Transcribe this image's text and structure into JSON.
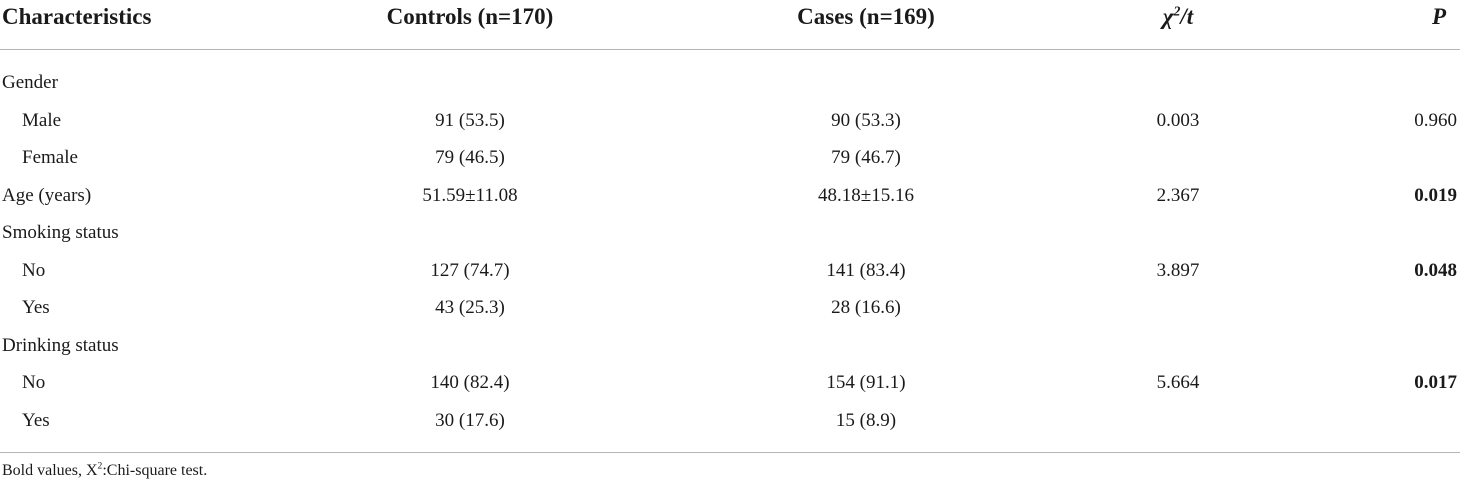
{
  "header": {
    "characteristics": "Characteristics",
    "controls": "Controls (n=170)",
    "cases": "Cases (n=169)",
    "stat_base": "χ",
    "stat_sup": "2",
    "stat_tail": "/t",
    "p": "P"
  },
  "rows": [
    {
      "label": "Gender",
      "controls": "",
      "cases": "",
      "stat": "",
      "p": "",
      "p_bold": false,
      "indent": false
    },
    {
      "label": "Male",
      "controls": "91 (53.5)",
      "cases": "90 (53.3)",
      "stat": "0.003",
      "p": "0.960",
      "p_bold": false,
      "indent": true
    },
    {
      "label": "Female",
      "controls": "79 (46.5)",
      "cases": "79 (46.7)",
      "stat": "",
      "p": "",
      "p_bold": false,
      "indent": true
    },
    {
      "label": "Age (years)",
      "controls": "51.59±11.08",
      "cases": "48.18±15.16",
      "stat": "2.367",
      "p": "0.019",
      "p_bold": true,
      "indent": false
    },
    {
      "label": "Smoking status",
      "controls": "",
      "cases": "",
      "stat": "",
      "p": "",
      "p_bold": false,
      "indent": false
    },
    {
      "label": "No",
      "controls": "127 (74.7)",
      "cases": "141 (83.4)",
      "stat": "3.897",
      "p": "0.048",
      "p_bold": true,
      "indent": true
    },
    {
      "label": "Yes",
      "controls": "43 (25.3)",
      "cases": "28 (16.6)",
      "stat": "",
      "p": "",
      "p_bold": false,
      "indent": true
    },
    {
      "label": "Drinking status",
      "controls": "",
      "cases": "",
      "stat": "",
      "p": "",
      "p_bold": false,
      "indent": false
    },
    {
      "label": "No",
      "controls": "140 (82.4)",
      "cases": "154 (91.1)",
      "stat": "5.664",
      "p": "0.017",
      "p_bold": true,
      "indent": true
    },
    {
      "label": "Yes",
      "controls": "30 (17.6)",
      "cases": "15 (8.9)",
      "stat": "",
      "p": "",
      "p_bold": false,
      "indent": true
    }
  ],
  "footnote": {
    "before": "Bold values, X",
    "sup": "2",
    "after": ":Chi-square test."
  }
}
